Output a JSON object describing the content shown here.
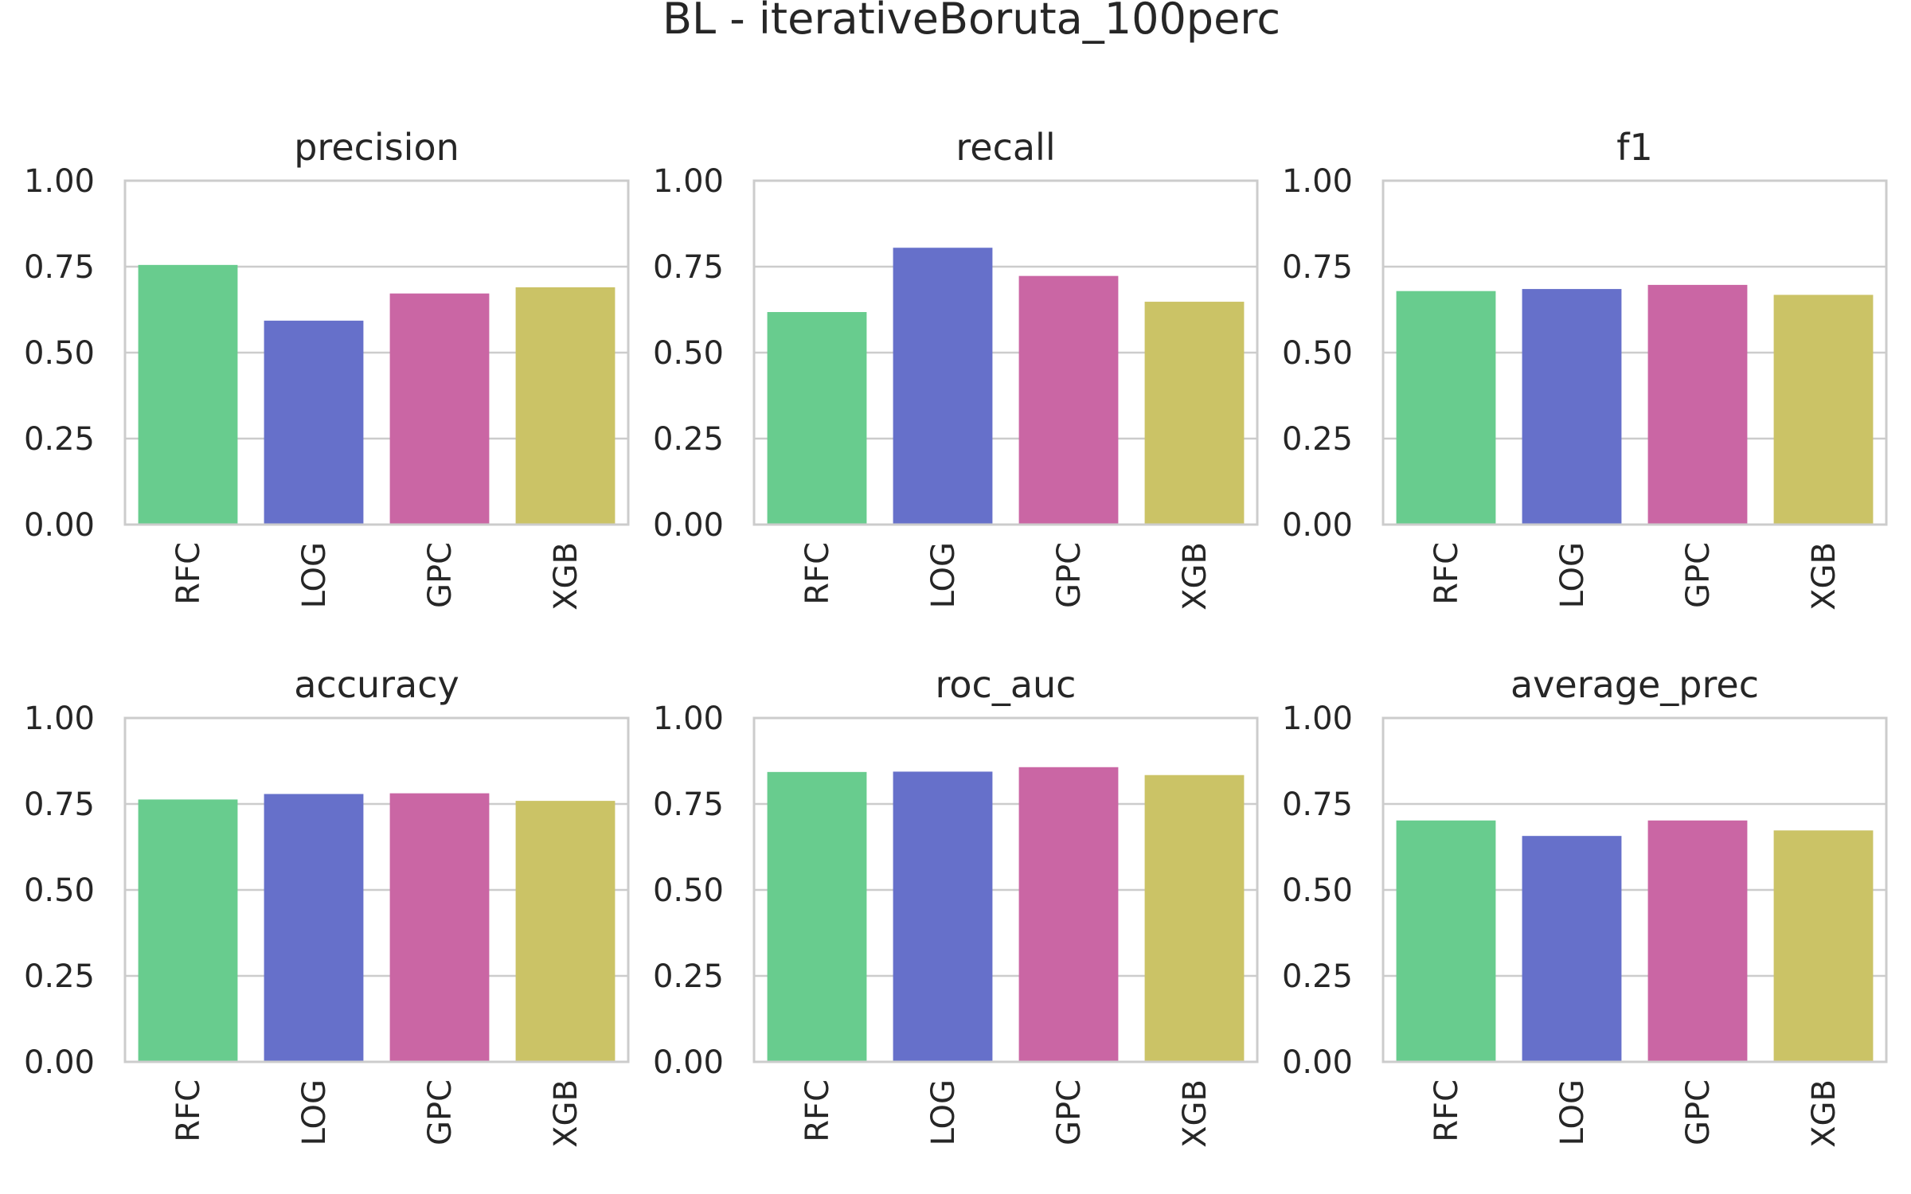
{
  "chart_data": {
    "title": "BL - iterativeBoruta_100perc",
    "type": "bar",
    "grid": true,
    "categories": [
      "RFC",
      "LOG",
      "GPC",
      "XGB"
    ],
    "colors": [
      "#68cc8e",
      "#6670ca",
      "#ca66a4",
      "#cbc366"
    ],
    "ylim": [
      0,
      1
    ],
    "yticks": [
      "0.00",
      "0.25",
      "0.50",
      "0.75",
      "1.00"
    ],
    "panels": [
      {
        "title": "precision",
        "values": [
          0.755,
          0.593,
          0.672,
          0.69
        ]
      },
      {
        "title": "recall",
        "values": [
          0.618,
          0.805,
          0.723,
          0.648
        ]
      },
      {
        "title": "f1",
        "values": [
          0.679,
          0.685,
          0.697,
          0.668
        ]
      },
      {
        "title": "accuracy",
        "values": [
          0.763,
          0.779,
          0.781,
          0.759
        ]
      },
      {
        "title": "roc_auc",
        "values": [
          0.843,
          0.844,
          0.857,
          0.834
        ]
      },
      {
        "title": "average_prec",
        "values": [
          0.702,
          0.657,
          0.702,
          0.673
        ]
      }
    ]
  }
}
